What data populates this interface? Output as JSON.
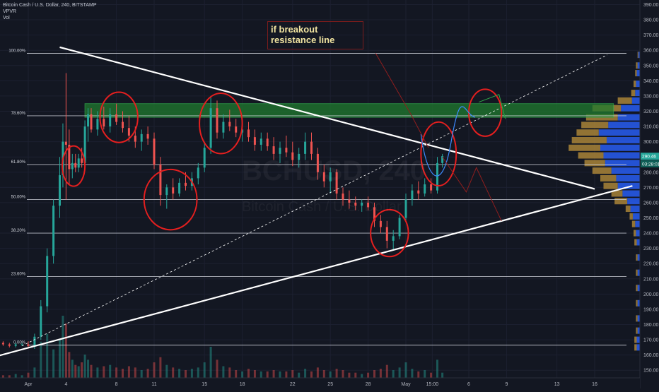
{
  "header": {
    "symbol_line": "Bitcoin Cash / U.S. Dollar, 240, BITSTAMP",
    "indicator_vpvr": "VPVR",
    "indicator_vol": "Vol"
  },
  "watermark": {
    "ticker": "BCHUSD, 240",
    "name": "Bitcoin Cash / U.S. Dollar"
  },
  "annotation": {
    "line1": "if breakout",
    "line2": "resistance line"
  },
  "colors": {
    "background": "#131722",
    "bull": "#26a69a",
    "bear": "#ef5350",
    "fib_line": "#d1d4dc",
    "trendline": "#ffffff",
    "highlight_zone": "#1f7a2e",
    "circle": "#e51f1f",
    "vp_up": "#2962ff",
    "vp_down": "#b38b3a",
    "price_badge": "#26a69a"
  },
  "chart_data": {
    "type": "candlestick",
    "title": "",
    "y_axis": {
      "min": 145,
      "max": 393,
      "ticks": [
        150,
        160,
        170,
        180,
        190,
        200,
        210,
        220,
        230,
        240,
        250,
        260,
        270,
        280,
        290,
        300,
        310,
        320,
        330,
        340,
        350,
        360,
        370,
        380,
        390
      ]
    },
    "x_axis": {
      "ticks": [
        {
          "label": "Apr",
          "t": 0
        },
        {
          "label": "4",
          "t": 3
        },
        {
          "label": "8",
          "t": 7
        },
        {
          "label": "11",
          "t": 10
        },
        {
          "label": "15",
          "t": 14
        },
        {
          "label": "18",
          "t": 17
        },
        {
          "label": "22",
          "t": 21
        },
        {
          "label": "25",
          "t": 24
        },
        {
          "label": "28",
          "t": 27
        },
        {
          "label": "May",
          "t": 30
        },
        {
          "label": "15:00",
          "t": 32.1
        },
        {
          "label": "6",
          "t": 35
        },
        {
          "label": "9",
          "t": 38
        },
        {
          "label": "13",
          "t": 42
        },
        {
          "label": "16",
          "t": 45
        }
      ]
    },
    "price_labels": [
      {
        "label": "290.46",
        "value": 290.46
      },
      {
        "label": "03:28:01",
        "value": 285.5
      }
    ],
    "fib_levels": [
      {
        "label": "100.00%",
        "value": 358
      },
      {
        "label": "78.60%",
        "value": 317
      },
      {
        "label": "61.80%",
        "value": 285
      },
      {
        "label": "50.00%",
        "value": 262
      },
      {
        "label": "38.20%",
        "value": 240
      },
      {
        "label": "23.60%",
        "value": 211.5
      },
      {
        "label": "0.00%",
        "value": 166.5
      }
    ],
    "zone": {
      "y_low": 316,
      "y_high": 325,
      "t_start": 4.5,
      "t_end": 46.5
    },
    "trendlines": [
      {
        "name": "resistance",
        "t1": 2.5,
        "y1": 362,
        "t2": 45,
        "y2": 269
      },
      {
        "name": "support",
        "t1": -3.5,
        "y1": 157,
        "t2": 48,
        "y2": 271
      },
      {
        "name": "projection",
        "dashed": true,
        "t1": -0.5,
        "y1": 166,
        "t2": 46,
        "y2": 357
      }
    ],
    "circles": [
      {
        "t": 3.6,
        "y": 284,
        "rt": 0.9,
        "ry": 12
      },
      {
        "t": 7.2,
        "y": 316,
        "rt": 1.5,
        "ry": 15
      },
      {
        "t": 11.3,
        "y": 262,
        "rt": 2.1,
        "ry": 18
      },
      {
        "t": 15.3,
        "y": 312,
        "rt": 1.7,
        "ry": 18
      },
      {
        "t": 28.7,
        "y": 240,
        "rt": 1.5,
        "ry": 14
      },
      {
        "t": 32.6,
        "y": 292,
        "rt": 1.4,
        "ry": 19
      },
      {
        "t": 36.3,
        "y": 319,
        "rt": 1.3,
        "ry": 14
      }
    ],
    "candles": [
      [
        -4.0,
        168,
        169,
        166,
        167
      ],
      [
        -3.5,
        167,
        168,
        165,
        166
      ],
      [
        -3.0,
        166,
        168,
        165,
        167
      ],
      [
        -2.5,
        167,
        169,
        166,
        168
      ],
      [
        -2.0,
        168,
        169,
        166,
        167
      ],
      [
        -1.5,
        167,
        168,
        165,
        166
      ],
      [
        -1.0,
        166,
        168,
        165,
        167
      ],
      [
        -0.5,
        167,
        168,
        166,
        167
      ],
      [
        0.0,
        167,
        169,
        165,
        166
      ],
      [
        0.5,
        166,
        174,
        164,
        172
      ],
      [
        1.0,
        172,
        196,
        170,
        192
      ],
      [
        1.5,
        192,
        230,
        188,
        225
      ],
      [
        2.0,
        225,
        262,
        220,
        258
      ],
      [
        2.5,
        258,
        290,
        250,
        278
      ],
      [
        2.75,
        278,
        312,
        270,
        300
      ],
      [
        3.0,
        300,
        345,
        262,
        298
      ],
      [
        3.25,
        298,
        308,
        272,
        282
      ],
      [
        3.5,
        282,
        292,
        276,
        286
      ],
      [
        3.75,
        286,
        292,
        280,
        283
      ],
      [
        4.0,
        283,
        292,
        280,
        289
      ],
      [
        4.25,
        289,
        296,
        283,
        286
      ],
      [
        4.5,
        286,
        314,
        284,
        310
      ],
      [
        4.75,
        310,
        322,
        300,
        318
      ],
      [
        5.0,
        318,
        322,
        306,
        308
      ],
      [
        5.5,
        308,
        320,
        304,
        315
      ],
      [
        6.0,
        315,
        323,
        308,
        310
      ],
      [
        6.5,
        310,
        322,
        306,
        318
      ],
      [
        7.0,
        318,
        325,
        311,
        313
      ],
      [
        7.5,
        313,
        320,
        306,
        309
      ],
      [
        8.0,
        309,
        317,
        300,
        304
      ],
      [
        8.5,
        304,
        310,
        296,
        300
      ],
      [
        9.0,
        300,
        308,
        294,
        305
      ],
      [
        9.5,
        305,
        310,
        298,
        302
      ],
      [
        10.0,
        302,
        306,
        282,
        285
      ],
      [
        10.5,
        285,
        290,
        258,
        265
      ],
      [
        11.0,
        265,
        272,
        256,
        270
      ],
      [
        11.5,
        270,
        276,
        262,
        266
      ],
      [
        12.0,
        266,
        276,
        264,
        273
      ],
      [
        12.5,
        273,
        280,
        268,
        271
      ],
      [
        13.0,
        271,
        280,
        268,
        276
      ],
      [
        13.5,
        276,
        286,
        272,
        283
      ],
      [
        14.0,
        283,
        300,
        280,
        296
      ],
      [
        14.5,
        296,
        330,
        292,
        322
      ],
      [
        15.0,
        322,
        327,
        302,
        306
      ],
      [
        15.5,
        306,
        318,
        302,
        313
      ],
      [
        16.0,
        313,
        321,
        307,
        310
      ],
      [
        16.5,
        310,
        315,
        303,
        306
      ],
      [
        17.0,
        306,
        312,
        300,
        308
      ],
      [
        17.5,
        308,
        313,
        300,
        303
      ],
      [
        18.0,
        303,
        308,
        294,
        298
      ],
      [
        18.5,
        298,
        306,
        294,
        302
      ],
      [
        19.0,
        302,
        306,
        294,
        297
      ],
      [
        19.5,
        297,
        303,
        288,
        292
      ],
      [
        20.0,
        292,
        300,
        286,
        296
      ],
      [
        20.5,
        296,
        304,
        290,
        293
      ],
      [
        21.0,
        293,
        300,
        284,
        288
      ],
      [
        21.5,
        288,
        296,
        283,
        292
      ],
      [
        22.0,
        292,
        306,
        288,
        300
      ],
      [
        22.5,
        300,
        306,
        288,
        292
      ],
      [
        23.0,
        292,
        296,
        275,
        280
      ],
      [
        23.5,
        280,
        285,
        270,
        274
      ],
      [
        24.0,
        274,
        283,
        266,
        280
      ],
      [
        24.5,
        280,
        282,
        262,
        266
      ],
      [
        25.0,
        266,
        270,
        258,
        262
      ],
      [
        25.5,
        262,
        268,
        256,
        260
      ],
      [
        26.0,
        260,
        264,
        255,
        258
      ],
      [
        26.5,
        258,
        262,
        254,
        260
      ],
      [
        27.0,
        260,
        264,
        255,
        257
      ],
      [
        27.5,
        257,
        260,
        244,
        248
      ],
      [
        28.0,
        248,
        252,
        240,
        244
      ],
      [
        28.5,
        244,
        248,
        230,
        235
      ],
      [
        29.0,
        235,
        242,
        229,
        238
      ],
      [
        29.5,
        238,
        252,
        236,
        250
      ],
      [
        30.0,
        250,
        266,
        248,
        262
      ],
      [
        30.5,
        262,
        272,
        258,
        268
      ],
      [
        31.0,
        268,
        274,
        262,
        266
      ],
      [
        31.5,
        266,
        276,
        264,
        272
      ],
      [
        32.0,
        272,
        276,
        266,
        268
      ],
      [
        32.5,
        268,
        290,
        266,
        286
      ],
      [
        32.9,
        286,
        292,
        283,
        290.5
      ]
    ],
    "volume_max": 48,
    "volumes": [
      [
        -4.0,
        2
      ],
      [
        -3.5,
        2
      ],
      [
        -3.0,
        2
      ],
      [
        -2.5,
        3
      ],
      [
        -2.0,
        2
      ],
      [
        -1.5,
        2
      ],
      [
        -1.0,
        3
      ],
      [
        -0.5,
        2
      ],
      [
        0.0,
        4
      ],
      [
        0.5,
        8
      ],
      [
        1.0,
        28
      ],
      [
        1.5,
        34
      ],
      [
        2.0,
        22
      ],
      [
        2.5,
        30
      ],
      [
        2.75,
        48
      ],
      [
        3.0,
        42
      ],
      [
        3.25,
        20
      ],
      [
        3.5,
        14
      ],
      [
        3.75,
        10
      ],
      [
        4.0,
        9
      ],
      [
        4.25,
        12
      ],
      [
        4.5,
        18
      ],
      [
        4.75,
        14
      ],
      [
        5.0,
        10
      ],
      [
        5.5,
        8
      ],
      [
        6.0,
        9
      ],
      [
        6.5,
        10
      ],
      [
        7.0,
        8
      ],
      [
        7.5,
        7
      ],
      [
        8.0,
        9
      ],
      [
        8.5,
        8
      ],
      [
        9.0,
        6
      ],
      [
        9.5,
        7
      ],
      [
        10.0,
        12
      ],
      [
        10.5,
        16
      ],
      [
        11.0,
        10
      ],
      [
        11.5,
        8
      ],
      [
        12.0,
        7
      ],
      [
        12.5,
        6
      ],
      [
        13.0,
        7
      ],
      [
        13.5,
        8
      ],
      [
        14.0,
        12
      ],
      [
        14.5,
        24
      ],
      [
        15.0,
        14
      ],
      [
        15.5,
        9
      ],
      [
        16.0,
        8
      ],
      [
        16.5,
        6
      ],
      [
        17.0,
        5
      ],
      [
        17.5,
        7
      ],
      [
        18.0,
        6
      ],
      [
        18.5,
        5
      ],
      [
        19.0,
        5
      ],
      [
        19.5,
        6
      ],
      [
        20.0,
        5
      ],
      [
        20.5,
        5
      ],
      [
        21.0,
        6
      ],
      [
        21.5,
        4
      ],
      [
        22.0,
        7
      ],
      [
        22.5,
        5
      ],
      [
        23.0,
        8
      ],
      [
        23.5,
        6
      ],
      [
        24.0,
        5
      ],
      [
        24.5,
        7
      ],
      [
        25.0,
        6
      ],
      [
        25.5,
        4
      ],
      [
        26.0,
        4
      ],
      [
        26.5,
        3
      ],
      [
        27.0,
        4
      ],
      [
        27.5,
        6
      ],
      [
        28.0,
        7
      ],
      [
        28.5,
        10
      ],
      [
        29.0,
        6
      ],
      [
        29.5,
        8
      ],
      [
        30.0,
        12
      ],
      [
        30.5,
        7
      ],
      [
        31.0,
        5
      ],
      [
        31.5,
        6
      ],
      [
        32.0,
        4
      ],
      [
        32.5,
        14
      ],
      [
        32.9,
        4
      ]
    ],
    "volume_profile": [
      {
        "price": 357,
        "up": 2,
        "down": 1
      },
      {
        "price": 350,
        "up": 3,
        "down": 2
      },
      {
        "price": 345,
        "up": 4,
        "down": 2
      },
      {
        "price": 338,
        "up": 5,
        "down": 3
      },
      {
        "price": 332,
        "up": 6,
        "down": 5
      },
      {
        "price": 327,
        "up": 10,
        "down": 18
      },
      {
        "price": 322,
        "up": 24,
        "down": 36
      },
      {
        "price": 316,
        "up": 28,
        "down": 40
      },
      {
        "price": 311,
        "up": 40,
        "down": 34
      },
      {
        "price": 306,
        "up": 52,
        "down": 28
      },
      {
        "price": 301,
        "up": 42,
        "down": 44
      },
      {
        "price": 296,
        "up": 50,
        "down": 40
      },
      {
        "price": 291,
        "up": 46,
        "down": 32
      },
      {
        "price": 286,
        "up": 44,
        "down": 26
      },
      {
        "price": 281,
        "up": 36,
        "down": 24
      },
      {
        "price": 276,
        "up": 30,
        "down": 20
      },
      {
        "price": 271,
        "up": 28,
        "down": 18
      },
      {
        "price": 266,
        "up": 22,
        "down": 14
      },
      {
        "price": 261,
        "up": 16,
        "down": 16
      },
      {
        "price": 256,
        "up": 12,
        "down": 6
      },
      {
        "price": 251,
        "up": 9,
        "down": 4
      },
      {
        "price": 246,
        "up": 6,
        "down": 4
      },
      {
        "price": 240,
        "up": 5,
        "down": 3
      },
      {
        "price": 234,
        "up": 4,
        "down": 3
      },
      {
        "price": 224,
        "up": 3,
        "down": 2
      },
      {
        "price": 214,
        "up": 3,
        "down": 2
      },
      {
        "price": 204,
        "up": 3,
        "down": 2
      },
      {
        "price": 194,
        "up": 3,
        "down": 2
      },
      {
        "price": 184,
        "up": 3,
        "down": 2
      },
      {
        "price": 176,
        "up": 3,
        "down": 2
      },
      {
        "price": 170,
        "up": 4,
        "down": 3
      },
      {
        "price": 165,
        "up": 4,
        "down": 3
      }
    ]
  }
}
